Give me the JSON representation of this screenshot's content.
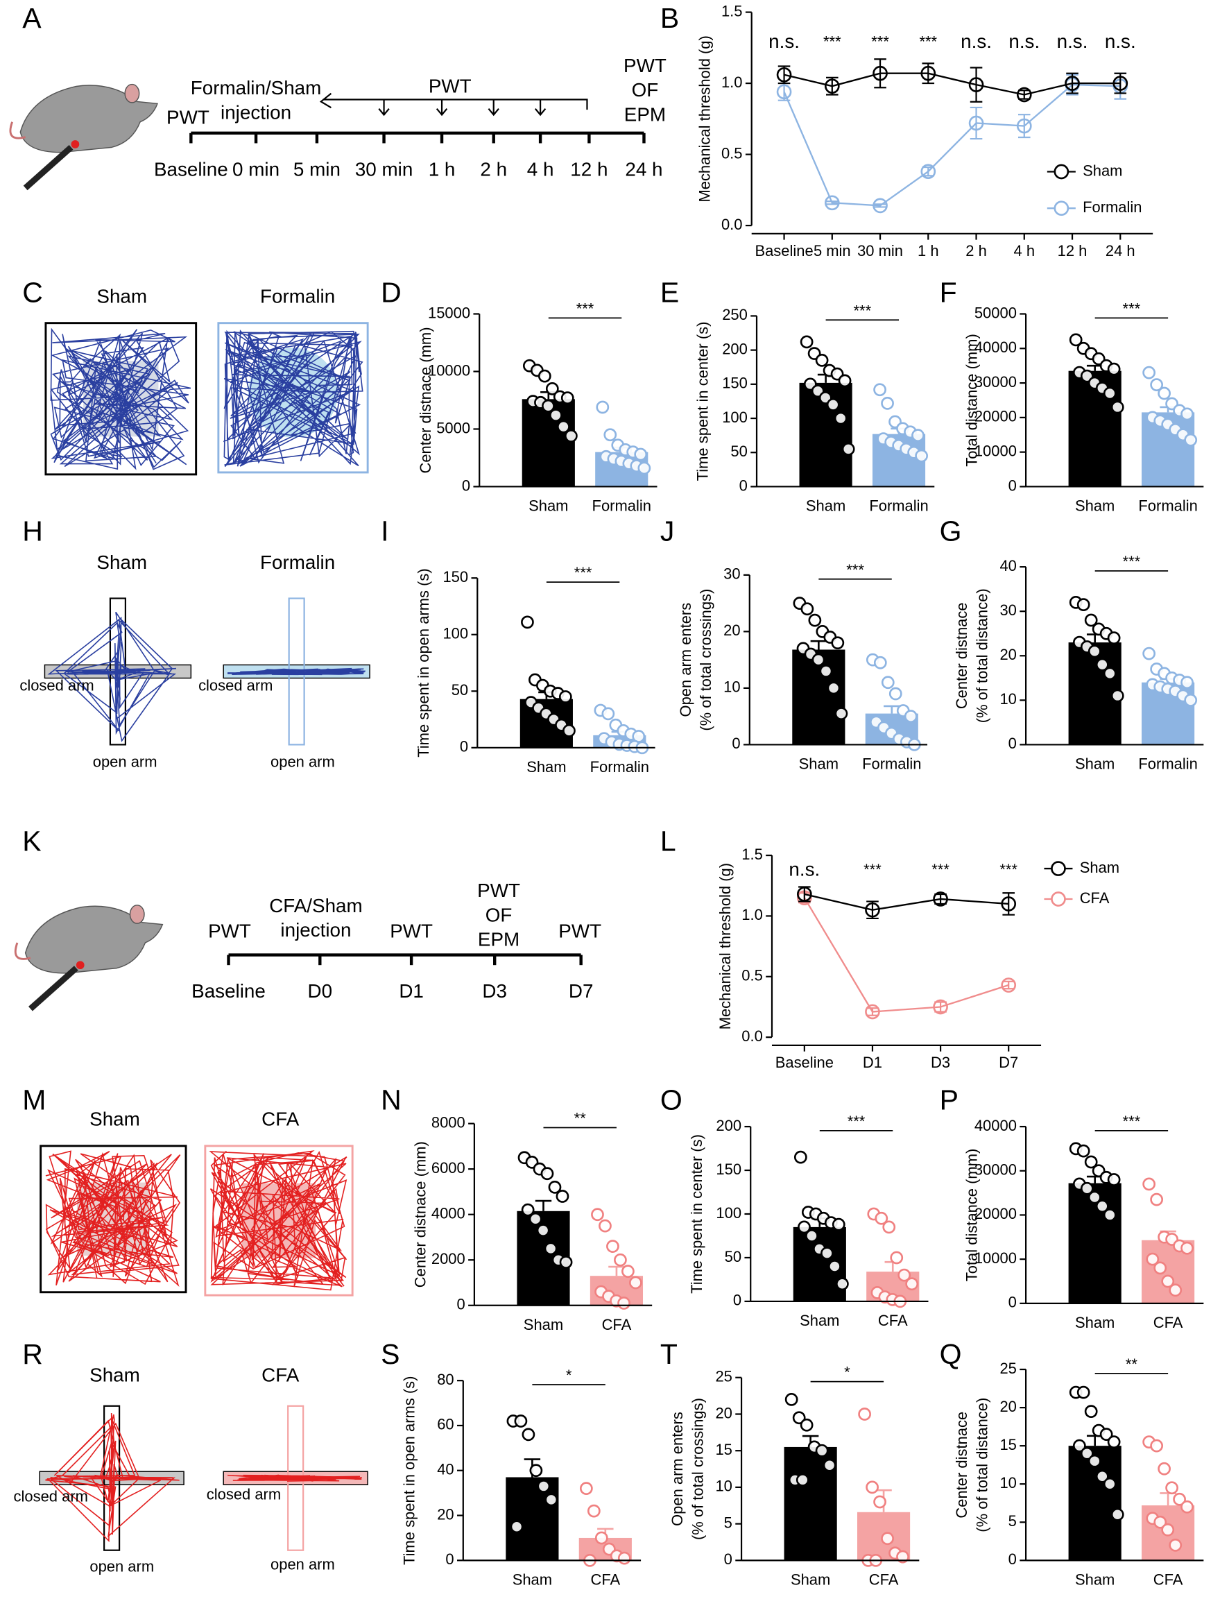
{
  "panel_labels": [
    "A",
    "B",
    "C",
    "D",
    "E",
    "F",
    "H",
    "I",
    "J",
    "G",
    "K",
    "L",
    "M",
    "N",
    "O",
    "P",
    "R",
    "S",
    "T",
    "Q"
  ],
  "timeline_A": {
    "ticks": [
      "Baseline",
      "0 min",
      "5 min",
      "30 min",
      "1 h",
      "2 h",
      "4 h",
      "12 h",
      "24 h"
    ],
    "above": [
      [
        "PWT"
      ],
      [
        "Formalin/Sham",
        "injection"
      ],
      [
        "PWT"
      ],
      [
        "PWT",
        "OF",
        "EPM"
      ]
    ]
  },
  "timeline_K": {
    "ticks": [
      "Baseline",
      "D0",
      "D1",
      "D3",
      "D7"
    ],
    "above": [
      [
        "PWT"
      ],
      [
        "CFA/Sham",
        "injection"
      ],
      [
        "PWT"
      ],
      [
        "PWT",
        "OF",
        "EPM"
      ],
      [
        "PWT"
      ]
    ]
  },
  "open_field_C": {
    "titles": [
      "Sham",
      "Formalin"
    ]
  },
  "maze_H": {
    "arenas": [
      {
        "title": "Sham",
        "closed": "closed arm",
        "open": "open arm"
      },
      {
        "title": "Formalin",
        "closed": "closed arm",
        "open": "open arm"
      }
    ]
  },
  "open_field_M": {
    "titles": [
      "Sham",
      "CFA"
    ]
  },
  "maze_R": {
    "arenas": [
      {
        "title": "Sham",
        "closed": "closed arm",
        "open": "open arm"
      },
      {
        "title": "CFA",
        "closed": "closed arm",
        "open": "open arm"
      }
    ]
  },
  "chart_data": [
    {
      "type": "line",
      "ylabel": "Mechanical threshold (g)",
      "categories": [
        "Baseline",
        "5 min",
        "30 min",
        "1 h",
        "2 h",
        "4 h",
        "12 h",
        "24 h"
      ],
      "series": [
        {
          "name": "Sham",
          "color": "#000000",
          "values": [
            1.06,
            0.98,
            1.07,
            1.07,
            0.99,
            0.92,
            1.0,
            1.0
          ],
          "errors": [
            0.06,
            0.06,
            0.1,
            0.07,
            0.12,
            0.03,
            0.07,
            0.07
          ]
        },
        {
          "name": "Formalin",
          "color": "#8db4e2",
          "values": [
            0.94,
            0.16,
            0.14,
            0.38,
            0.72,
            0.7,
            0.99,
            0.98
          ],
          "errors": [
            0.06,
            0.01,
            0.01,
            0.03,
            0.11,
            0.08,
            0.07,
            0.09
          ]
        }
      ],
      "significance": [
        "n.s.",
        "***",
        "***",
        "***",
        "n.s.",
        "n.s.",
        "n.s.",
        "n.s."
      ],
      "ylim": [
        0,
        1.5
      ],
      "yticks": [
        {
          "value": 0,
          "label": "0.0"
        },
        0.5,
        {
          "value": 1,
          "label": "1.0"
        },
        1.5
      ],
      "legend": "lower right"
    },
    {
      "type": "bar",
      "ylabel": [
        "Center distnace (mm)"
      ],
      "categories": [
        "Sham",
        "Formalin"
      ],
      "values": [
        7600,
        3000
      ],
      "errors": [
        600,
        400
      ],
      "points": [
        [
          10500,
          10100,
          9600,
          8500,
          7800,
          7700,
          7400,
          7300,
          7000,
          6200,
          5200,
          4400
        ],
        [
          6900,
          4500,
          3600,
          3200,
          3000,
          2800,
          2600,
          2400,
          2200,
          2000,
          1800,
          1600
        ]
      ],
      "colors": [
        "#000000",
        "#8db4e2"
      ],
      "point_colors": [
        "#000000",
        "#8db4e2"
      ],
      "significance": "***",
      "ylim": [
        0,
        15000
      ],
      "yticks": [
        0,
        5000,
        10000,
        15000
      ]
    },
    {
      "type": "bar",
      "ylabel": [
        "Time spent in center (s)"
      ],
      "categories": [
        "Sham",
        "Formalin"
      ],
      "values": [
        152,
        77
      ],
      "errors": [
        12,
        8
      ],
      "points": [
        [
          212,
          195,
          185,
          170,
          165,
          155,
          150,
          140,
          130,
          120,
          100,
          55
        ],
        [
          142,
          122,
          95,
          85,
          80,
          75,
          70,
          65,
          60,
          55,
          50,
          45
        ]
      ],
      "colors": [
        "#000000",
        "#8db4e2"
      ],
      "point_colors": [
        "#000000",
        "#8db4e2"
      ],
      "significance": "***",
      "ylim": [
        0,
        250
      ],
      "yticks": [
        0,
        50,
        100,
        150,
        200,
        250
      ]
    },
    {
      "type": "bar",
      "ylabel": [
        "Total distance (mm)"
      ],
      "categories": [
        "Sham",
        "Formalin"
      ],
      "values": [
        33500,
        21500
      ],
      "errors": [
        1500,
        1500
      ],
      "points": [
        [
          42500,
          40000,
          38500,
          37000,
          35000,
          34000,
          33000,
          32000,
          30000,
          28500,
          27000,
          23000
        ],
        [
          33000,
          29500,
          27000,
          24000,
          22000,
          21000,
          20000,
          19000,
          18000,
          16500,
          15000,
          13500
        ]
      ],
      "colors": [
        "#000000",
        "#8db4e2"
      ],
      "point_colors": [
        "#000000",
        "#8db4e2"
      ],
      "significance": "***",
      "ylim": [
        0,
        50000
      ],
      "yticks": [
        0,
        10000,
        20000,
        30000,
        40000,
        50000
      ]
    },
    {
      "type": "bar",
      "ylabel": [
        "Time spent in open arms (s)"
      ],
      "categories": [
        "Sham",
        "Formalin"
      ],
      "values": [
        43,
        11
      ],
      "errors": [
        6,
        3
      ],
      "points": [
        [
          111,
          60,
          55,
          50,
          48,
          45,
          40,
          35,
          30,
          25,
          20,
          15
        ],
        [
          33,
          30,
          20,
          15,
          12,
          10,
          8,
          5,
          3,
          2,
          1,
          0
        ]
      ],
      "colors": [
        "#000000",
        "#8db4e2"
      ],
      "point_colors": [
        "#000000",
        "#8db4e2"
      ],
      "significance": "***",
      "ylim": [
        0,
        150
      ],
      "yticks": [
        0,
        50,
        100,
        150
      ]
    },
    {
      "type": "bar",
      "ylabel": [
        "Open arm enters",
        "(% of total crossings)"
      ],
      "categories": [
        "Sham",
        "Formalin"
      ],
      "values": [
        16.8,
        5.5
      ],
      "errors": [
        1.5,
        1.3
      ],
      "points": [
        [
          25,
          24,
          22,
          20,
          19,
          18,
          17,
          16,
          15,
          13,
          10,
          5.5
        ],
        [
          15,
          14.5,
          11,
          9,
          6,
          5,
          4,
          3,
          2,
          1,
          0.5,
          0
        ]
      ],
      "colors": [
        "#000000",
        "#8db4e2"
      ],
      "point_colors": [
        "#000000",
        "#8db4e2"
      ],
      "significance": "***",
      "ylim": [
        0,
        30
      ],
      "yticks": [
        0,
        10,
        20,
        30
      ]
    },
    {
      "type": "bar",
      "ylabel": [
        "Center distnace",
        "(% of total distance)"
      ],
      "categories": [
        "Sham",
        "Formalin"
      ],
      "values": [
        23,
        14
      ],
      "errors": [
        1.8,
        0.8
      ],
      "points": [
        [
          32,
          31.5,
          28,
          26,
          25,
          24,
          23,
          22,
          21,
          18,
          16,
          11
        ],
        [
          20.5,
          17,
          16,
          15,
          14.5,
          14,
          13.5,
          13,
          12.5,
          12,
          11,
          10
        ]
      ],
      "colors": [
        "#000000",
        "#8db4e2"
      ],
      "point_colors": [
        "#000000",
        "#8db4e2"
      ],
      "significance": "***",
      "ylim": [
        0,
        40
      ],
      "yticks": [
        0,
        10,
        20,
        30,
        40
      ]
    },
    {
      "type": "line",
      "ylabel": "Mechanical threshold (g)",
      "categories": [
        "Baseline",
        "D1",
        "D3",
        "D7"
      ],
      "series": [
        {
          "name": "Sham",
          "color": "#000000",
          "values": [
            1.18,
            1.05,
            1.14,
            1.1
          ],
          "errors": [
            0.06,
            0.07,
            0.04,
            0.09
          ]
        },
        {
          "name": "CFA",
          "color": "#f08c8c",
          "values": [
            1.15,
            0.21,
            0.25,
            0.43
          ],
          "errors": [
            0.04,
            0.03,
            0.04,
            0.03
          ]
        }
      ],
      "significance": [
        "n.s.",
        "***",
        "***",
        "***"
      ],
      "ylim": [
        0,
        1.5
      ],
      "yticks": [
        {
          "value": 0,
          "label": "0.0"
        },
        0.5,
        {
          "value": 1,
          "label": "1.0"
        },
        1.5
      ],
      "legend": "upper right"
    },
    {
      "type": "bar",
      "ylabel": [
        "Center distnace (mm)"
      ],
      "categories": [
        "Sham",
        "CFA"
      ],
      "values": [
        4150,
        1300
      ],
      "errors": [
        450,
        400
      ],
      "points": [
        [
          6500,
          6300,
          6000,
          5800,
          5200,
          4800,
          4200,
          3800,
          3300,
          2500,
          2000,
          1900
        ],
        [
          4000,
          3500,
          2600,
          2000,
          1500,
          1000,
          600,
          400,
          200,
          100
        ]
      ],
      "colors": [
        "#000000",
        "#f4a3a3"
      ],
      "point_colors": [
        "#000000",
        "#f08080"
      ],
      "significance": "**",
      "ylim": [
        0,
        8000
      ],
      "yticks": [
        0,
        2000,
        4000,
        6000,
        8000
      ]
    },
    {
      "type": "bar",
      "ylabel": [
        "Time spent in center (s)"
      ],
      "categories": [
        "Sham",
        "CFA"
      ],
      "values": [
        85,
        34
      ],
      "errors": [
        10,
        11
      ],
      "points": [
        [
          165,
          102,
          100,
          95,
          90,
          88,
          85,
          75,
          60,
          55,
          40,
          20
        ],
        [
          100,
          95,
          85,
          50,
          30,
          20,
          10,
          5,
          2,
          0
        ]
      ],
      "colors": [
        "#000000",
        "#f4a3a3"
      ],
      "point_colors": [
        "#000000",
        "#f08080"
      ],
      "significance": "***",
      "ylim": [
        0,
        200
      ],
      "yticks": [
        0,
        50,
        100,
        150,
        200
      ]
    },
    {
      "type": "bar",
      "ylabel": [
        "Total distance (mm)"
      ],
      "categories": [
        "Sham",
        "CFA"
      ],
      "values": [
        27200,
        14300
      ],
      "errors": [
        1500,
        2000
      ],
      "points": [
        [
          35000,
          34500,
          32000,
          30000,
          28500,
          28000,
          27000,
          26000,
          24000,
          22000,
          20000
        ],
        [
          27000,
          23500,
          15000,
          14500,
          13000,
          12500,
          10000,
          8000,
          5000,
          3000
        ]
      ],
      "colors": [
        "#000000",
        "#f4a3a3"
      ],
      "point_colors": [
        "#000000",
        "#f08080"
      ],
      "significance": "***",
      "ylim": [
        0,
        40000
      ],
      "yticks": [
        0,
        10000,
        20000,
        30000,
        40000
      ]
    },
    {
      "type": "bar",
      "ylabel": [
        "Time spent in open arms (s)"
      ],
      "categories": [
        "Sham",
        "CFA"
      ],
      "values": [
        37,
        10
      ],
      "errors": [
        8,
        4
      ],
      "points": [
        [
          62,
          62,
          56,
          40,
          33,
          27,
          15
        ],
        [
          32,
          22,
          10,
          5,
          2,
          1,
          0
        ]
      ],
      "colors": [
        "#000000",
        "#f4a3a3"
      ],
      "point_colors": [
        "#000000",
        "#f08080"
      ],
      "significance": "*",
      "ylim": [
        0,
        80
      ],
      "yticks": [
        0,
        20,
        40,
        60,
        80
      ]
    },
    {
      "type": "bar",
      "ylabel": [
        "Open arm enters",
        "(% of total crossings)"
      ],
      "categories": [
        "Sham",
        "CFA"
      ],
      "values": [
        15.5,
        6.6
      ],
      "errors": [
        1.5,
        3
      ],
      "points": [
        [
          22,
          19.5,
          18.5,
          15.5,
          15,
          13,
          11,
          11
        ],
        [
          20,
          10,
          8,
          3,
          1,
          0.5,
          0,
          0
        ]
      ],
      "colors": [
        "#000000",
        "#f4a3a3"
      ],
      "point_colors": [
        "#000000",
        "#f08080"
      ],
      "significance": "*",
      "ylim": [
        0,
        25
      ],
      "yticks": [
        0,
        5,
        10,
        15,
        20,
        25
      ]
    },
    {
      "type": "bar",
      "ylabel": [
        "Center distnace",
        "(% of total distance)"
      ],
      "categories": [
        "Sham",
        "CFA"
      ],
      "values": [
        15,
        7.2
      ],
      "errors": [
        1.3,
        1.6
      ],
      "points": [
        [
          22,
          22,
          19.5,
          17,
          16.5,
          15.5,
          15,
          14,
          13,
          11,
          10,
          6
        ],
        [
          15.5,
          15,
          12,
          9.5,
          8,
          7,
          5.5,
          5,
          4,
          2
        ]
      ],
      "colors": [
        "#000000",
        "#f4a3a3"
      ],
      "point_colors": [
        "#000000",
        "#f08080"
      ],
      "significance": "**",
      "ylim": [
        0,
        25
      ],
      "yticks": [
        0,
        5,
        10,
        15,
        20,
        25
      ]
    }
  ]
}
